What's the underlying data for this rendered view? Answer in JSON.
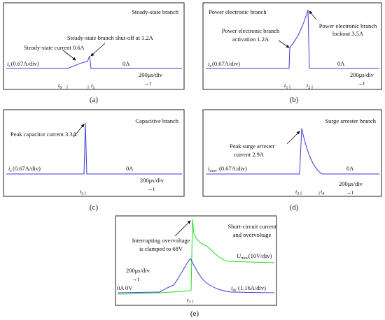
{
  "panels": [
    {
      "title": "Steady-state branch",
      "annotations": [
        [
          "Steady-state branch shut-off at 1.2A"
        ],
        [
          "Steady-state current 0.6A"
        ]
      ],
      "scale": {
        "symbol": "i",
        "sub": "s",
        "text": "(0.67A/div)"
      },
      "zero": "0A",
      "time_div": "200μs/div",
      "time_axis": "→t",
      "markers": [
        {
          "symbol": "t",
          "sub": "0"
        },
        {
          "symbol": "t",
          "sub": "1"
        }
      ],
      "caption": "(a)"
    },
    {
      "title": "Power electronic branch",
      "annotations": [
        [
          "Power electronic branch",
          "lockout 3.5A"
        ],
        [
          "Power electronic branch",
          "activation 1.2A"
        ]
      ],
      "scale": {
        "symbol": "i",
        "sub": "e",
        "text": "(0.67A/div)"
      },
      "zero": "0A",
      "time_div": "200μs/div",
      "time_axis": "→t",
      "markers": [
        {
          "symbol": "t",
          "sub": "1"
        },
        {
          "symbol": "t",
          "sub": "2"
        }
      ],
      "caption": "(b)"
    },
    {
      "title": "Capacitive branch",
      "annotations": [
        [
          "Peak capacitor current 3.3A"
        ]
      ],
      "scale": {
        "symbol": "i",
        "sub": "c",
        "text": "(0.67A/div)"
      },
      "zero": "0A",
      "time_div": "200μs/div",
      "time_axis": "→t",
      "markers": [
        {
          "symbol": "t",
          "sub": "3"
        }
      ],
      "caption": "(c)"
    },
    {
      "title": "Surge arrester branch",
      "annotations": [
        [
          "Peak surge arrester",
          "current 2.9A"
        ]
      ],
      "scale": {
        "symbol": "i",
        "sub": "mov",
        "text": "(0.67A/div)"
      },
      "zero": "0A",
      "time_div": "200μs/div",
      "time_axis": "→t",
      "markers": [
        {
          "symbol": "t",
          "sub": "3"
        },
        {
          "symbol": "t",
          "sub": "4"
        }
      ],
      "caption": "(d)"
    },
    {
      "title": [
        "Short-circuit current",
        "and overvoltage"
      ],
      "annotations": [
        [
          "Interrupting overvoltage",
          "is clamped to 68V"
        ]
      ],
      "scale": {
        "symbol": "i",
        "sub": "dc",
        "text": "(1.16A/div)"
      },
      "scale2": {
        "symbol": "U",
        "sub": "mov",
        "text": "(10V/div)"
      },
      "zero": "0A 0V",
      "time_div": "200μs/div",
      "time_axis": "→t",
      "markers": [
        {
          "symbol": "t",
          "sub": "3"
        }
      ],
      "caption": "(e)"
    }
  ]
}
